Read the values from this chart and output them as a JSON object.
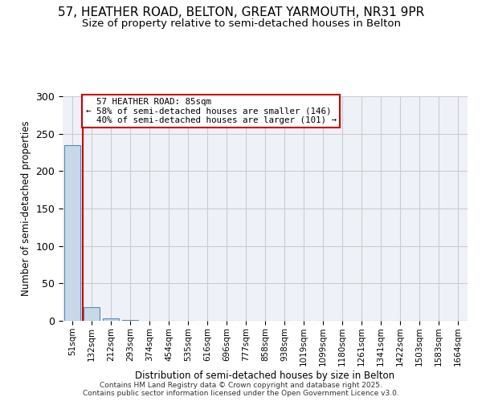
{
  "title_line1": "57, HEATHER ROAD, BELTON, GREAT YARMOUTH, NR31 9PR",
  "title_line2": "Size of property relative to semi-detached houses in Belton",
  "xlabel": "Distribution of semi-detached houses by size in Belton",
  "ylabel": "Number of semi-detached properties",
  "footer": "Contains HM Land Registry data © Crown copyright and database right 2025.\nContains public sector information licensed under the Open Government Licence v3.0.",
  "bin_labels": [
    "51sqm",
    "132sqm",
    "212sqm",
    "293sqm",
    "374sqm",
    "454sqm",
    "535sqm",
    "616sqm",
    "696sqm",
    "777sqm",
    "858sqm",
    "938sqm",
    "1019sqm",
    "1099sqm",
    "1180sqm",
    "1261sqm",
    "1341sqm",
    "1422sqm",
    "1503sqm",
    "1583sqm",
    "1664sqm"
  ],
  "bar_values": [
    235,
    18,
    3,
    1,
    0,
    0,
    0,
    0,
    0,
    0,
    0,
    0,
    0,
    0,
    0,
    0,
    0,
    0,
    0,
    0,
    0
  ],
  "bar_color": "#c8d8e8",
  "bar_edge_color": "#5a8ab0",
  "property_bin_index": 1,
  "property_label": "57 HEATHER ROAD: 85sqm",
  "pct_smaller": 58,
  "n_smaller": 146,
  "pct_larger": 40,
  "n_larger": 101,
  "annotation_box_color": "#cc0000",
  "vline_color": "#cc0000",
  "ylim": [
    0,
    300
  ],
  "yticks": [
    0,
    50,
    100,
    150,
    200,
    250,
    300
  ],
  "grid_color": "#cccccc",
  "plot_bg_color": "#eef2f8",
  "fig_bg_color": "#ffffff"
}
